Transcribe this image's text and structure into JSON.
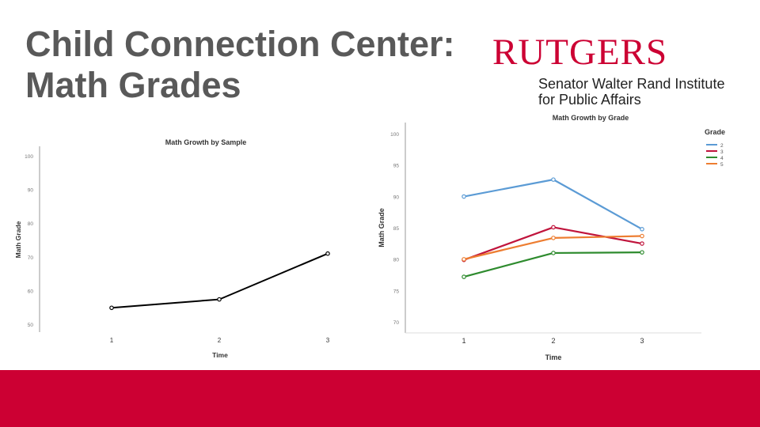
{
  "slide": {
    "title_line1": "Child Connection Center:",
    "title_line2": "Math Grades"
  },
  "logo": {
    "wordmark": "RUTGERS",
    "line1": "Senator Walter Rand Institute",
    "line2": "for Public Affairs"
  },
  "colors": {
    "brand_red": "#cc0033",
    "title_gray": "#595959"
  },
  "chart_data": [
    {
      "type": "line",
      "title": "Math Growth by Sample",
      "xlabel": "Time",
      "ylabel": "Math Grade",
      "x": [
        1,
        2,
        3
      ],
      "ylim": [
        50,
        100
      ],
      "yticks": [
        50,
        60,
        70,
        80,
        90,
        100
      ],
      "series": [
        {
          "name": "",
          "color": "#000000",
          "values": [
            55.1,
            57.6,
            71.2
          ]
        }
      ],
      "grid": false
    },
    {
      "type": "line",
      "title": "Math Growth by Grade",
      "xlabel": "Time",
      "ylabel": "Math Grade",
      "x": [
        1,
        2,
        3
      ],
      "ylim": [
        70,
        100
      ],
      "yticks": [
        70,
        75,
        80,
        85,
        90,
        95,
        100
      ],
      "legend_title": "Grade",
      "legend_position": "top-right",
      "series": [
        {
          "name": "2",
          "color": "#5b9bd5",
          "values": [
            90.1,
            92.8,
            84.9
          ]
        },
        {
          "name": "3",
          "color": "#c0143c",
          "values": [
            80.0,
            85.2,
            82.6
          ]
        },
        {
          "name": "4",
          "color": "#2e8b2e",
          "values": [
            77.3,
            81.1,
            81.2
          ]
        },
        {
          "name": "5",
          "color": "#ed7d31",
          "values": [
            80.1,
            83.5,
            83.8
          ]
        }
      ],
      "grid": false
    }
  ]
}
